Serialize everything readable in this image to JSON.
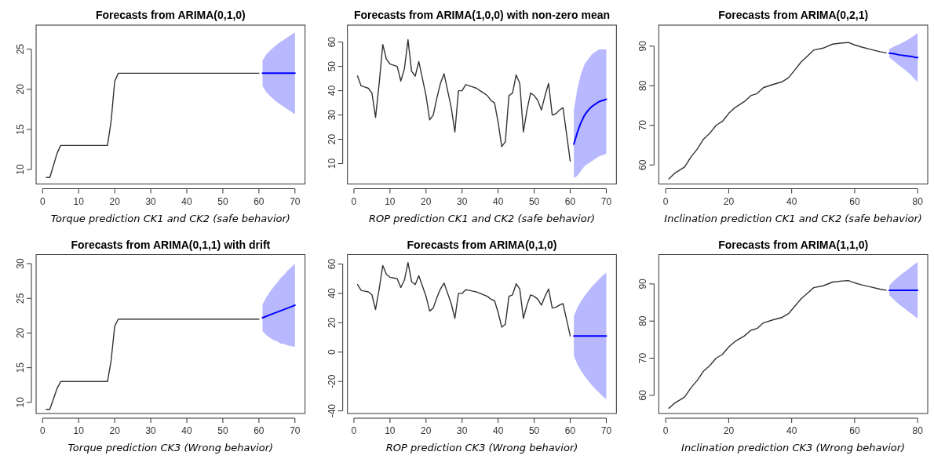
{
  "chart_data": [
    {
      "type": "line",
      "title": "Forecasts from ARIMA(0,1,0)",
      "xlabel": "Torque prediction CK1 and CK2 (safe behavior)",
      "xlim": [
        -1.8,
        72.8
      ],
      "xticks": [
        0,
        10,
        20,
        30,
        40,
        50,
        60,
        70
      ],
      "ylim": [
        8.2,
        28
      ],
      "yticks": [
        10,
        15,
        20,
        25
      ],
      "series": [
        {
          "color": "#333333",
          "x": [
            1,
            2,
            3,
            4,
            5,
            18,
            19,
            20,
            21,
            60
          ],
          "values": [
            9,
            9,
            10.5,
            12,
            13,
            13,
            16,
            21,
            22,
            22
          ]
        },
        {
          "color": "#0000ff",
          "x": [
            61,
            62,
            63,
            64,
            65,
            66,
            67,
            68,
            69,
            70
          ],
          "values": [
            22,
            22,
            22,
            22,
            22,
            22,
            22,
            22,
            22,
            22
          ],
          "lower": [
            20.4,
            19.7,
            19.2,
            18.8,
            18.4,
            18.1,
            17.8,
            17.5,
            17.2,
            16.9
          ],
          "upper": [
            23.6,
            24.3,
            24.8,
            25.2,
            25.6,
            25.9,
            26.2,
            26.5,
            26.8,
            27.1
          ]
        }
      ]
    },
    {
      "type": "line",
      "title": "Forecasts from ARIMA(1,0,0) with non-zero mean",
      "xlabel": "ROP prediction CK1 and CK2 (safe behavior)",
      "xlim": [
        -1.8,
        72.8
      ],
      "xticks": [
        0,
        10,
        20,
        30,
        40,
        50,
        60,
        70
      ],
      "ylim": [
        1.6,
        67
      ],
      "yticks": [
        10,
        20,
        30,
        40,
        50,
        60
      ],
      "series": [
        {
          "color": "#333333",
          "x": [
            1,
            2,
            3,
            4,
            5,
            6,
            7,
            8,
            9,
            10,
            11,
            12,
            13,
            14,
            15,
            16,
            17,
            18,
            19,
            20,
            21,
            22,
            23,
            24,
            25,
            26,
            27,
            28,
            29,
            30,
            31,
            32,
            33,
            34,
            35,
            36,
            37,
            38,
            39,
            40,
            41,
            42,
            43,
            44,
            45,
            46,
            47,
            48,
            49,
            50,
            51,
            52,
            53,
            54,
            55,
            56,
            57,
            58,
            59,
            60
          ],
          "values": [
            46,
            42,
            41.5,
            41,
            39,
            29,
            43,
            59,
            53,
            51,
            50.5,
            50,
            44,
            49,
            61,
            48,
            46,
            52,
            45,
            38,
            28,
            30,
            37,
            43,
            47,
            40,
            33,
            23,
            40,
            40,
            42.5,
            42,
            41.5,
            41,
            40,
            39,
            38,
            36,
            35,
            27,
            17,
            19,
            38,
            39,
            46.5,
            43,
            23,
            32,
            39,
            38,
            36,
            32,
            38,
            43,
            30,
            30.5,
            32,
            33,
            22,
            11
          ]
        },
        {
          "color": "#0000ff",
          "x": [
            61,
            62,
            63,
            64,
            65,
            66,
            67,
            68,
            69,
            70
          ],
          "values": [
            18,
            23,
            27,
            30,
            32,
            33.5,
            34.5,
            35.5,
            36,
            36.5
          ],
          "lower": [
            4,
            5,
            7,
            9,
            10,
            11,
            12,
            13,
            13.5,
            14
          ],
          "upper": [
            32,
            41,
            47,
            51,
            53,
            55,
            56,
            57,
            57,
            57
          ]
        }
      ]
    },
    {
      "type": "line",
      "title": "Forecasts from ARIMA(0,2,1)",
      "xlabel": "Inclination prediction CK1 and CK2 (safe behavior)",
      "xlim": [
        -2.2,
        83.2
      ],
      "xticks": [
        0,
        20,
        40,
        60,
        80
      ],
      "ylim": [
        55.2,
        95.3
      ],
      "yticks": [
        60,
        70,
        80,
        90
      ],
      "series": [
        {
          "color": "#333333",
          "x": [
            1,
            3,
            6,
            8,
            10,
            12,
            14,
            16,
            18,
            20,
            22,
            25,
            27,
            29,
            31,
            34,
            37,
            39,
            41,
            43,
            45,
            47,
            50,
            53,
            56,
            58,
            60,
            62,
            65,
            68,
            70
          ],
          "values": [
            56.5,
            58,
            59.5,
            62,
            64,
            66.5,
            68,
            70,
            71,
            73,
            74.5,
            76,
            77.5,
            78,
            79.5,
            80.3,
            81,
            82,
            84,
            86,
            87.5,
            89,
            89.5,
            90.5,
            90.8,
            90.9,
            90.3,
            89.8,
            89.2,
            88.6,
            88.3
          ]
        },
        {
          "color": "#0000ff",
          "x": [
            71,
            72,
            73,
            74,
            75,
            76,
            77,
            78,
            79,
            80
          ],
          "values": [
            88.2,
            88.1,
            88,
            87.8,
            87.7,
            87.6,
            87.5,
            87.4,
            87.2,
            87.1
          ],
          "lower": [
            87.2,
            86.5,
            85.9,
            85.2,
            84.6,
            84,
            83.3,
            82.6,
            81.7,
            80.9
          ],
          "upper": [
            89.2,
            89.7,
            90.1,
            90.4,
            90.8,
            91.2,
            91.7,
            92.2,
            92.7,
            93.3
          ]
        }
      ]
    },
    {
      "type": "line",
      "title": "Forecasts from ARIMA(0,1,1) with drift",
      "xlabel": "Torque prediction CK3 (Wrong behavior)",
      "xlim": [
        -1.8,
        72.8
      ],
      "xticks": [
        0,
        10,
        20,
        30,
        40,
        50,
        60,
        70
      ],
      "ylim": [
        8.4,
        31.3
      ],
      "yticks": [
        10,
        15,
        20,
        25,
        30
      ],
      "series": [
        {
          "color": "#333333",
          "x": [
            1,
            2,
            3,
            4,
            5,
            18,
            19,
            20,
            21,
            60
          ],
          "values": [
            9,
            9,
            10.5,
            12,
            13,
            13,
            16,
            21,
            22,
            22
          ]
        },
        {
          "color": "#0000ff",
          "x": [
            61,
            62,
            63,
            64,
            65,
            66,
            67,
            68,
            69,
            70
          ],
          "values": [
            22.2,
            22.4,
            22.6,
            22.8,
            23,
            23.2,
            23.4,
            23.6,
            23.8,
            24
          ],
          "lower": [
            20.3,
            19.7,
            19.3,
            19,
            18.8,
            18.5,
            18.4,
            18.2,
            18.1,
            18
          ],
          "upper": [
            24.1,
            25.1,
            25.9,
            26.6,
            27.2,
            27.9,
            28.4,
            29,
            29.5,
            30
          ]
        }
      ]
    },
    {
      "type": "line",
      "title": "Forecasts from ARIMA(0,1,0)",
      "xlabel": "ROP prediction CK3 (Wrong behavior)",
      "xlim": [
        -1.8,
        72.8
      ],
      "xticks": [
        0,
        10,
        20,
        30,
        40,
        50,
        60,
        70
      ],
      "ylim": [
        -41.8,
        66.4
      ],
      "yticks": [
        -40,
        -20,
        0,
        20,
        40,
        60
      ],
      "series": [
        {
          "color": "#333333",
          "x": [
            1,
            2,
            3,
            4,
            5,
            6,
            7,
            8,
            9,
            10,
            11,
            12,
            13,
            14,
            15,
            16,
            17,
            18,
            19,
            20,
            21,
            22,
            23,
            24,
            25,
            26,
            27,
            28,
            29,
            30,
            31,
            32,
            33,
            34,
            35,
            36,
            37,
            38,
            39,
            40,
            41,
            42,
            43,
            44,
            45,
            46,
            47,
            48,
            49,
            50,
            51,
            52,
            53,
            54,
            55,
            56,
            57,
            58,
            59,
            60
          ],
          "values": [
            46,
            42,
            41.5,
            41,
            39,
            29,
            43,
            59,
            53,
            51,
            50.5,
            50,
            44,
            49,
            61,
            48,
            46,
            52,
            45,
            38,
            28,
            30,
            37,
            43,
            47,
            40,
            33,
            23,
            40,
            40,
            42.5,
            42,
            41.5,
            41,
            40,
            39,
            38,
            36,
            35,
            27,
            17,
            19,
            38,
            39,
            46.5,
            43,
            23,
            32,
            39,
            38,
            36,
            32,
            38,
            43,
            30,
            30.5,
            32,
            33,
            22,
            11
          ]
        },
        {
          "color": "#0000ff",
          "x": [
            61,
            62,
            63,
            64,
            65,
            66,
            67,
            68,
            69,
            70
          ],
          "values": [
            11,
            11,
            11,
            11,
            11,
            11,
            11,
            11,
            11,
            11
          ],
          "lower": [
            -2.7,
            -8.4,
            -12.7,
            -16.4,
            -19.6,
            -22.6,
            -25.2,
            -27.7,
            -30.1,
            -32.3
          ],
          "upper": [
            24.7,
            30.4,
            34.7,
            38.4,
            41.6,
            44.6,
            47.2,
            49.7,
            52.1,
            54.3
          ]
        }
      ]
    },
    {
      "type": "line",
      "title": "Forecasts from ARIMA(1,1,0)",
      "xlabel": "Inclination prediction CK3 (Wrong behavior)",
      "xlim": [
        -2.2,
        83.2
      ],
      "xticks": [
        0,
        20,
        40,
        60,
        80
      ],
      "ylim": [
        55.1,
        97.9
      ],
      "yticks": [
        60,
        70,
        80,
        90
      ],
      "series": [
        {
          "color": "#333333",
          "x": [
            1,
            3,
            6,
            8,
            10,
            12,
            14,
            16,
            18,
            20,
            22,
            25,
            27,
            29,
            31,
            34,
            37,
            39,
            41,
            43,
            45,
            47,
            50,
            53,
            56,
            58,
            60,
            62,
            65,
            68,
            70
          ],
          "values": [
            56.5,
            58,
            59.5,
            62,
            64,
            66.5,
            68,
            70,
            71,
            73,
            74.5,
            76,
            77.5,
            78,
            79.5,
            80.3,
            81,
            82,
            84,
            86,
            87.5,
            89,
            89.5,
            90.5,
            90.8,
            90.9,
            90.3,
            89.8,
            89.2,
            88.6,
            88.3
          ]
        },
        {
          "color": "#0000ff",
          "x": [
            71,
            72,
            73,
            74,
            75,
            76,
            77,
            78,
            79,
            80
          ],
          "values": [
            88.3,
            88.3,
            88.3,
            88.3,
            88.3,
            88.3,
            88.3,
            88.3,
            88.3,
            88.3
          ],
          "lower": [
            87,
            86.1,
            85.3,
            84.6,
            83.9,
            83.3,
            82.6,
            82,
            81.3,
            80.7
          ],
          "upper": [
            89.6,
            90.5,
            91.3,
            92,
            92.7,
            93.3,
            94,
            94.6,
            95.3,
            95.9
          ]
        }
      ]
    }
  ]
}
